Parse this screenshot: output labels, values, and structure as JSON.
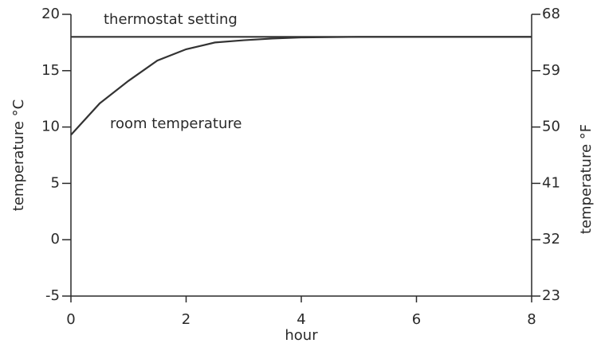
{
  "chart_data": {
    "type": "line",
    "xlabel": "hour",
    "ylabel": "temperature °C",
    "y2label": "temperature °F",
    "x": [
      0,
      0.5,
      1,
      1.5,
      2,
      2.5,
      3,
      3.5,
      4,
      5,
      6,
      7,
      8
    ],
    "series": [
      {
        "name": "thermostat setting",
        "color": "#333333",
        "values": [
          18,
          18,
          18,
          18,
          18,
          18,
          18,
          18,
          18,
          18,
          18,
          18,
          18
        ]
      },
      {
        "name": "room temperature",
        "color": "#333333",
        "values": [
          9.3,
          12.1,
          14.1,
          15.9,
          16.9,
          17.5,
          17.7,
          17.85,
          17.95,
          18,
          18,
          18,
          18
        ]
      }
    ],
    "xlim": [
      0,
      8
    ],
    "xticks": [
      0,
      2,
      4,
      6,
      8
    ],
    "ylim": [
      -5,
      20
    ],
    "yticks": [
      -5,
      0,
      5,
      10,
      15,
      20
    ],
    "y2lim": [
      23,
      68
    ],
    "y2ticks": [
      23,
      32,
      41,
      50,
      59,
      68
    ],
    "grid": false
  }
}
